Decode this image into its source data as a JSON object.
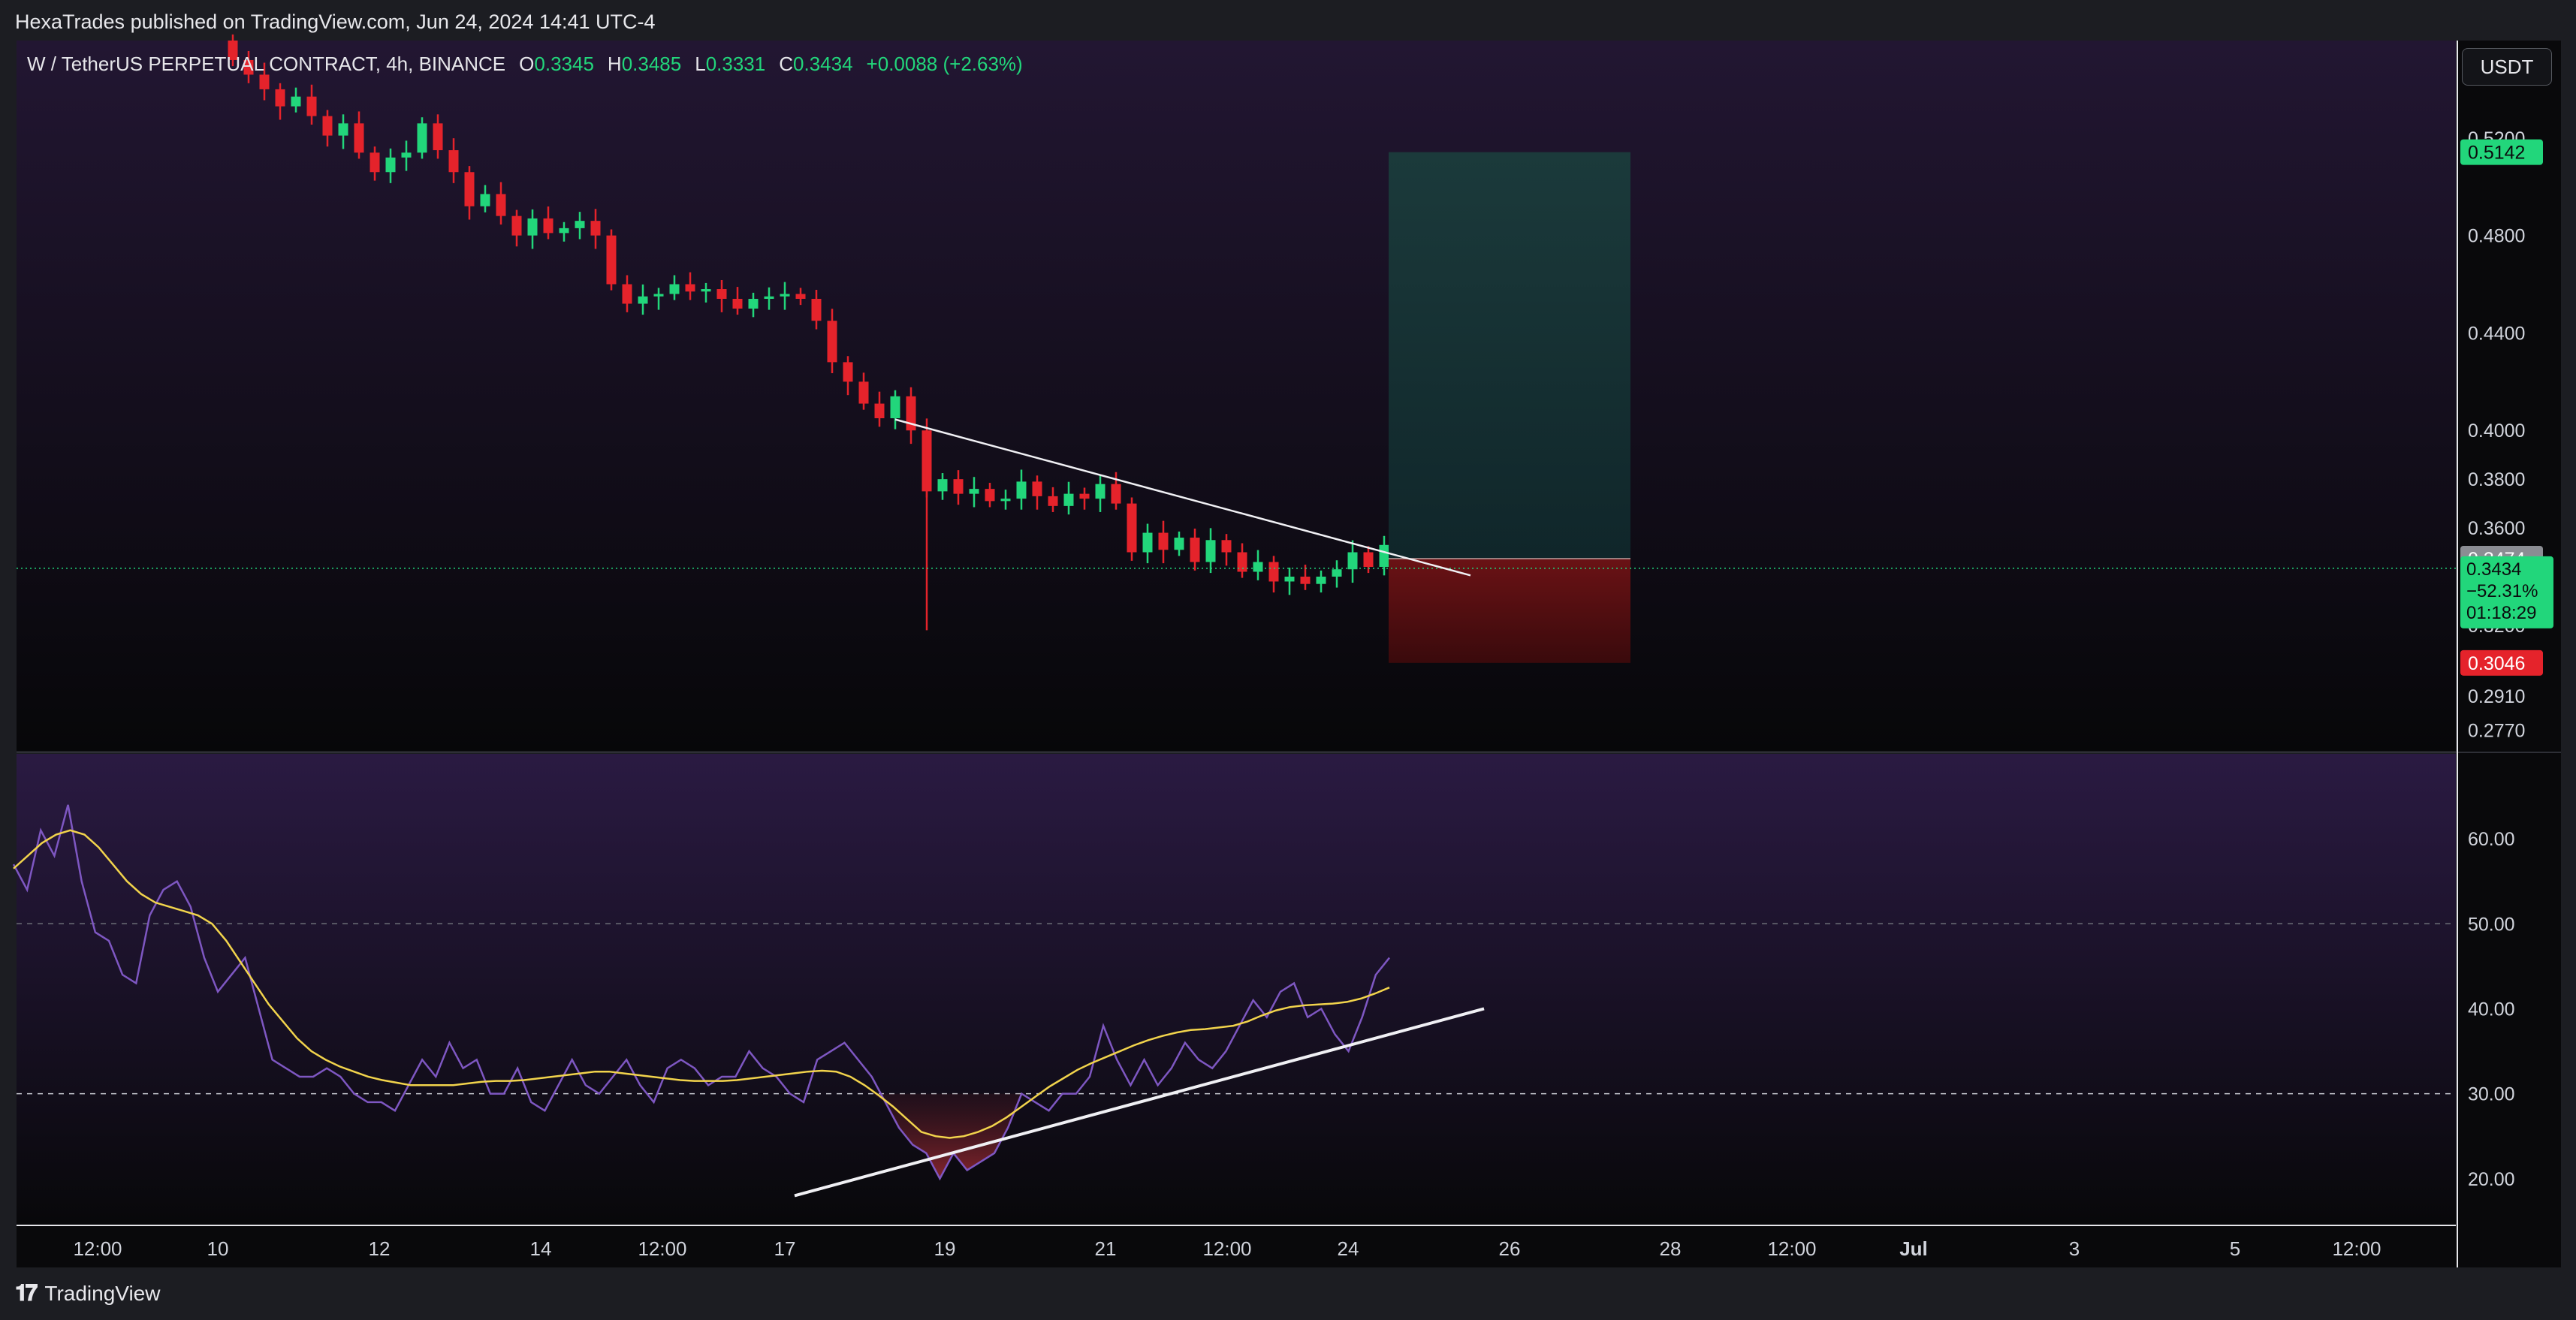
{
  "header": {
    "published_line": "HexaTrades published on TradingView.com, Jun 24, 2024 14:41 UTC-4"
  },
  "footer": {
    "logo_text": "TradingView"
  },
  "legend": {
    "symbol": "W / TetherUS PERPETUAL CONTRACT, 4h, BINANCE",
    "open_label": "O",
    "open": "0.3345",
    "high_label": "H",
    "high": "0.3485",
    "low_label": "L",
    "low": "0.3331",
    "close_label": "C",
    "close": "0.3434",
    "change": "+0.0088 (+2.63%)"
  },
  "price_axis": {
    "unit": "USDT",
    "ticks": [
      "0.5200",
      "0.4800",
      "0.4400",
      "0.4000",
      "0.3800",
      "0.3600",
      "0.3200",
      "0.2910",
      "0.2770"
    ],
    "badges": {
      "target": "0.5142",
      "entry": "0.3474",
      "last_price": "0.3434",
      "last_change": "−52.31%",
      "countdown": "01:18:29",
      "stop": "0.3046"
    }
  },
  "rsi_axis": {
    "ticks": [
      "60.00",
      "50.00",
      "40.00",
      "30.00",
      "20.00"
    ]
  },
  "time_axis": {
    "ticks": [
      "12:00",
      "10",
      "12",
      "14",
      "12:00",
      "17",
      "19",
      "21",
      "12:00",
      "24",
      "26",
      "28",
      "12:00",
      "Jul",
      "3",
      "5",
      "12:00"
    ]
  },
  "colors": {
    "up": "#22d67b",
    "down": "#e5232b",
    "rsi_line": "#7e57c2",
    "rsi_ma": "#f2d44c",
    "target_zone": "#17413d",
    "stop_zone": "#5a1012"
  },
  "chart_data": [
    {
      "type": "candlestick",
      "title": "W / TetherUS PERPETUAL CONTRACT, 4h, BINANCE",
      "unit": "USDT",
      "x_axis_ticks": [
        "12:00",
        "10",
        "12",
        "14",
        "12:00",
        "17",
        "19",
        "21",
        "12:00",
        "24",
        "26",
        "28",
        "12:00",
        "Jul",
        "3",
        "5",
        "12:00"
      ],
      "ylim": [
        0.2685,
        0.56
      ],
      "close": [
        0.552,
        0.546,
        0.54,
        0.533,
        0.537,
        0.529,
        0.521,
        0.526,
        0.514,
        0.506,
        0.512,
        0.514,
        0.526,
        0.515,
        0.506,
        0.492,
        0.497,
        0.488,
        0.48,
        0.487,
        0.481,
        0.483,
        0.486,
        0.48,
        0.46,
        0.452,
        0.455,
        0.456,
        0.46,
        0.457,
        0.458,
        0.454,
        0.45,
        0.454,
        0.455,
        0.456,
        0.454,
        0.445,
        0.428,
        0.42,
        0.411,
        0.405,
        0.414,
        0.4,
        0.375,
        0.38,
        0.374,
        0.376,
        0.371,
        0.372,
        0.379,
        0.373,
        0.369,
        0.374,
        0.372,
        0.378,
        0.37,
        0.35,
        0.358,
        0.351,
        0.356,
        0.346,
        0.355,
        0.35,
        0.342,
        0.346,
        0.338,
        0.34,
        0.337,
        0.34,
        0.343,
        0.35,
        0.344,
        0.353,
        0.348,
        0.344,
        0.338,
        0.331,
        0.334,
        0.328,
        0.335,
        0.33,
        0.34,
        0.3434
      ],
      "note": "values read from the candle pattern; price axis ticks printed as shown",
      "annotations": {
        "descending_trendline": [
          [
            0.4045,
            0.3405
          ]
        ],
        "long_position": {
          "target": 0.5142,
          "entry": 0.3474,
          "stop": 0.3046
        },
        "last_price": 0.3434
      }
    },
    {
      "type": "line",
      "title": "",
      "ylim": [
        14.5,
        70
      ],
      "reference_lines": [
        50,
        30
      ],
      "series": [
        {
          "values": [
            57,
            54,
            61,
            58,
            64,
            55,
            49,
            48,
            44,
            43,
            51,
            54,
            55,
            52,
            46,
            42,
            44,
            46,
            40,
            34,
            33,
            32,
            32,
            33,
            32,
            30,
            29,
            29,
            28,
            31,
            34,
            32,
            36,
            33,
            34,
            30,
            30,
            33,
            29,
            28,
            31,
            34,
            31,
            30,
            32,
            34,
            31,
            29,
            33,
            34,
            33,
            31,
            32,
            32,
            35,
            33,
            32,
            30,
            29,
            34,
            35,
            36,
            34,
            32,
            29,
            26,
            24,
            23,
            20,
            23,
            21,
            22,
            23,
            26,
            30,
            29,
            28,
            30,
            30,
            32,
            38,
            34,
            31,
            34,
            31,
            33,
            36,
            34,
            33,
            35,
            38,
            41,
            39,
            42,
            43,
            39,
            40,
            37,
            35,
            39,
            44,
            46
          ],
          "color": "#7e57c2"
        },
        {
          "values": [
            56.5,
            58,
            59.5,
            60.5,
            61,
            60.5,
            59,
            57,
            55,
            53.5,
            52.5,
            52,
            51.5,
            51,
            50,
            48,
            45.5,
            43,
            40.5,
            38.5,
            36.5,
            35,
            34,
            33.2,
            32.6,
            32,
            31.6,
            31.3,
            31,
            31,
            31,
            31,
            31.2,
            31.4,
            31.5,
            31.5,
            31.6,
            31.8,
            32,
            32.2,
            32.4,
            32.6,
            32.6,
            32.4,
            32.2,
            32,
            31.8,
            31.6,
            31.5,
            31.5,
            31.5,
            31.6,
            31.8,
            32,
            32.2,
            32.4,
            32.6,
            32.7,
            32.6,
            32,
            31,
            29.8,
            28.5,
            27,
            25.5,
            25,
            24.8,
            25,
            25.5,
            26.2,
            27.2,
            28.4,
            29.6,
            30.8,
            31.8,
            32.8,
            33.6,
            34.3,
            35,
            35.7,
            36.3,
            36.8,
            37.2,
            37.5,
            37.6,
            37.8,
            38,
            38.5,
            39.2,
            39.8,
            40.2,
            40.4,
            40.5,
            40.6,
            40.8,
            41.2,
            41.8,
            42.5
          ],
          "color": "#f2d44c"
        }
      ],
      "annotations": {
        "ascending_trendline": [
          18,
          40
        ]
      }
    }
  ]
}
